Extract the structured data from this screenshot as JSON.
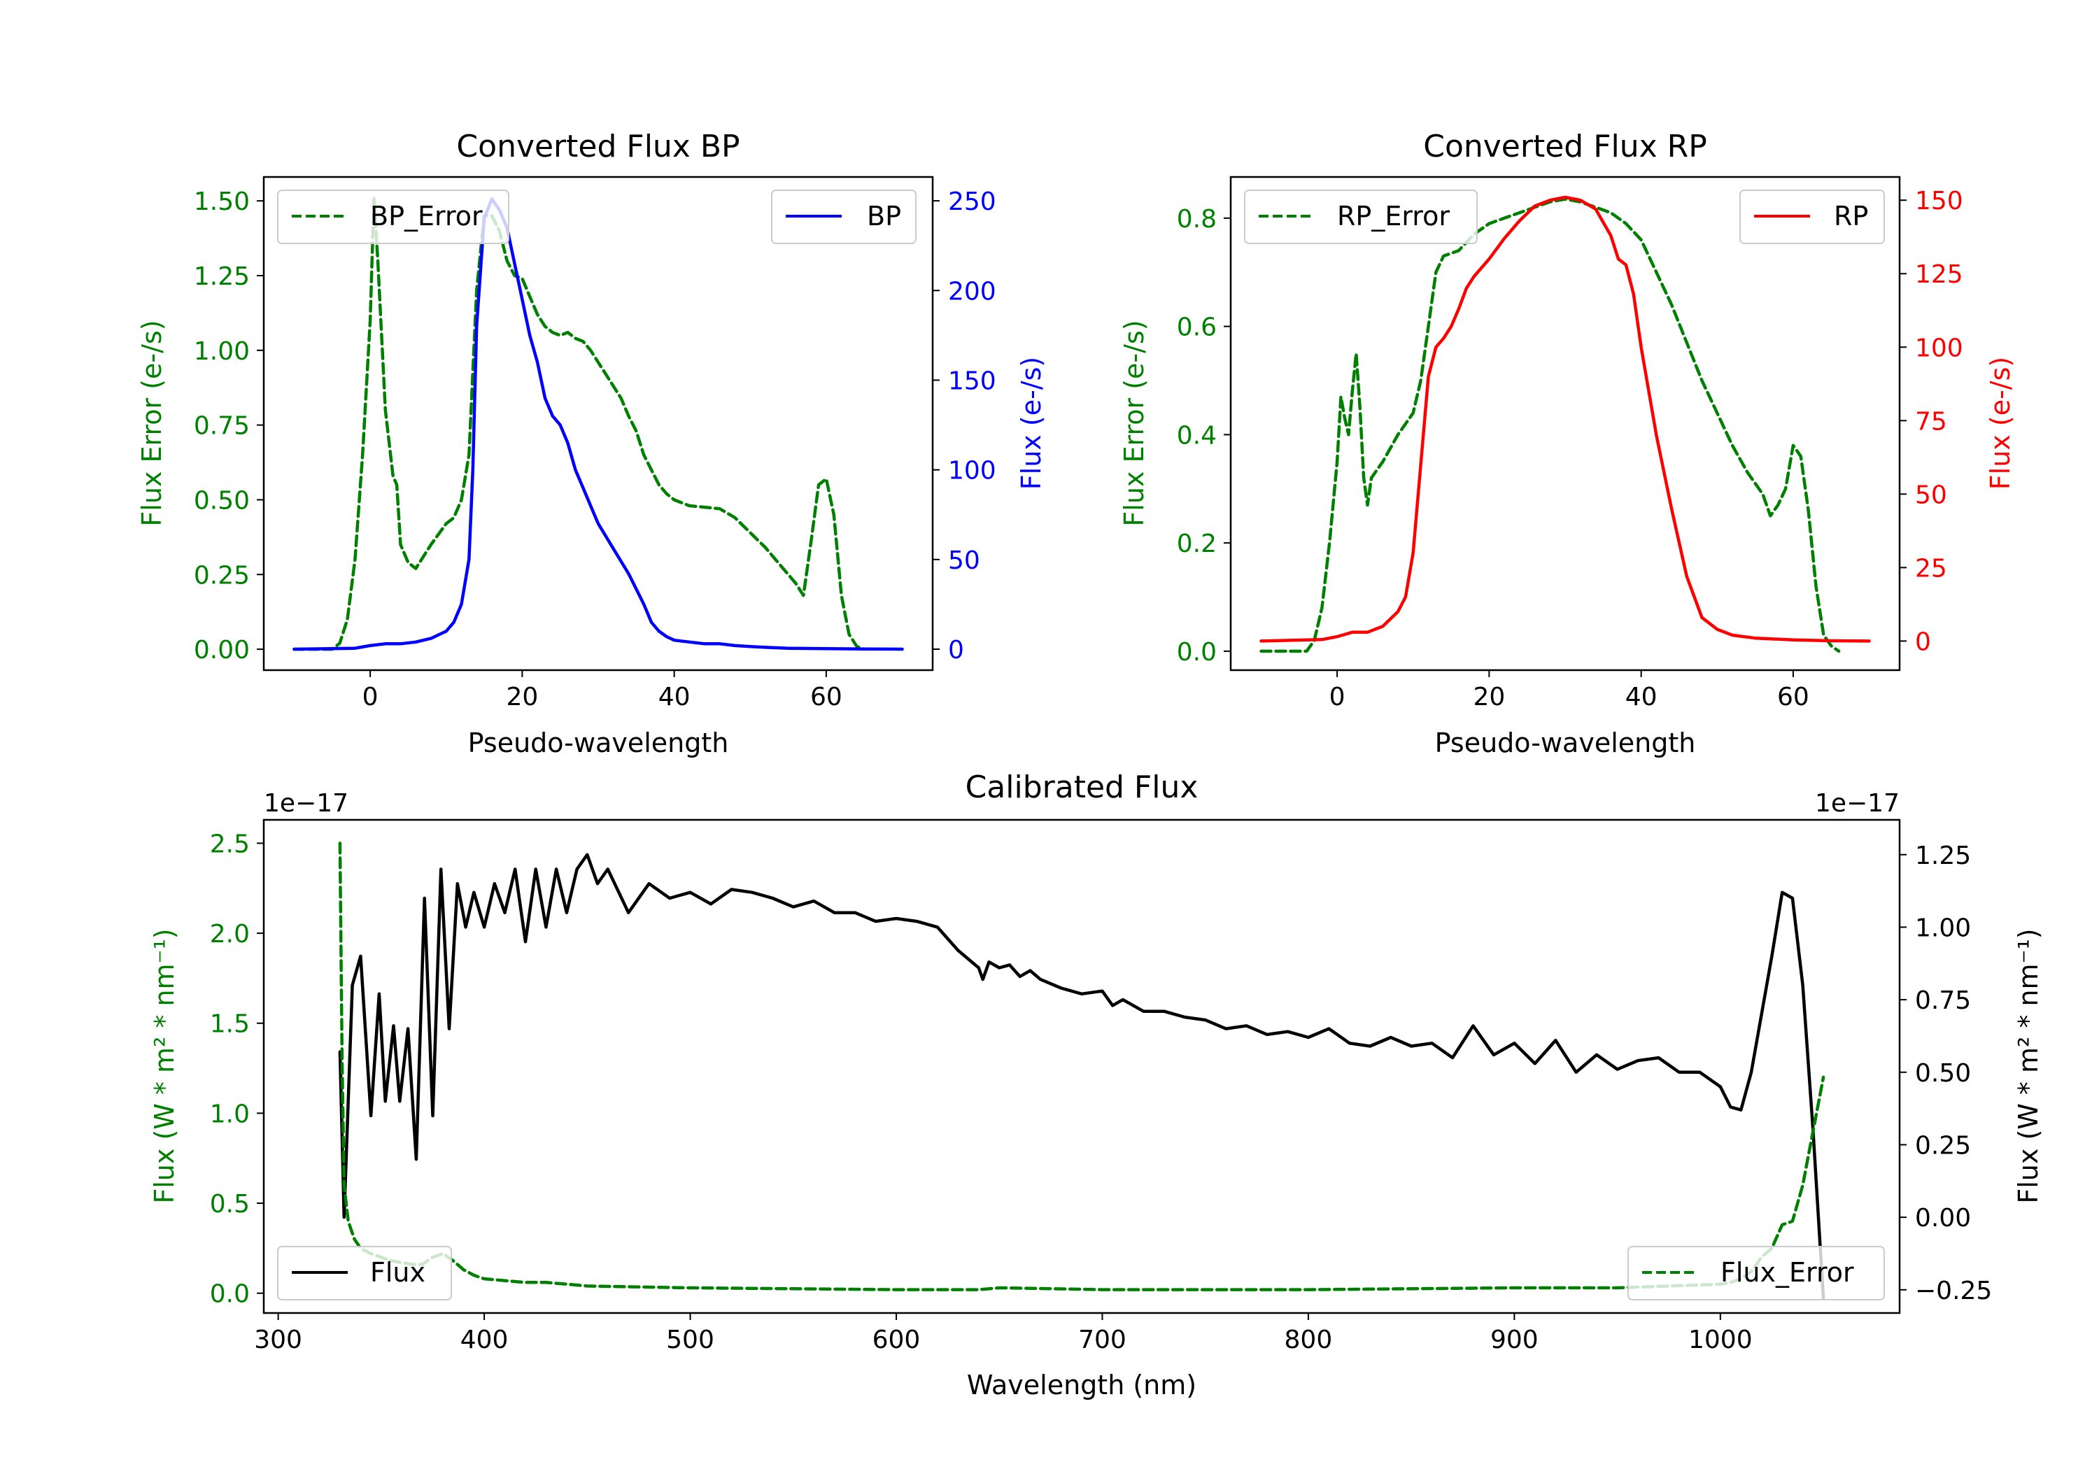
{
  "chart_data": [
    {
      "type": "line",
      "title": "Converted Flux BP",
      "xlabel": "Pseudo-wavelength",
      "ylabel_left": "Flux Error (e-/s)",
      "ylabel_right": "Flux (e-/s)",
      "xlim": [
        -14,
        74
      ],
      "ylim_left": [
        -0.07,
        1.58
      ],
      "ylim_right": [
        -11.7,
        263.3
      ],
      "xticks": [
        0,
        20,
        40,
        60
      ],
      "yticks_left": [
        0.0,
        0.25,
        0.5,
        0.75,
        1.0,
        1.25,
        1.5
      ],
      "yticks_right": [
        0,
        50,
        100,
        150,
        200,
        250
      ],
      "ytick_labels_left": [
        "0.00",
        "0.25",
        "0.50",
        "0.75",
        "1.00",
        "1.25",
        "1.50"
      ],
      "left_color": "#008000",
      "right_color": "#0000ff",
      "legend_left": {
        "label": "BP_Error",
        "placement": "upper-left"
      },
      "legend_right": {
        "label": "BP",
        "placement": "upper-right"
      },
      "series": [
        {
          "name": "BP_Error",
          "axis": "left",
          "style": "dashed",
          "color": "#008000",
          "x": [
            -10,
            -5,
            -4,
            -3,
            -2,
            -1,
            0,
            0.5,
            1,
            2,
            3,
            3.5,
            4,
            5,
            6,
            8,
            10,
            11,
            12,
            13,
            14,
            15,
            16,
            17,
            18,
            19,
            20,
            21,
            22,
            23,
            24,
            25,
            26,
            27,
            28,
            29,
            30,
            31,
            32,
            33,
            34,
            35,
            36,
            37,
            38,
            39,
            40,
            42,
            44,
            46,
            48,
            50,
            52,
            54,
            56,
            57,
            58,
            59,
            60,
            61,
            62,
            63,
            64,
            65
          ],
          "y": [
            0,
            0.0,
            0.02,
            0.1,
            0.3,
            0.65,
            1.1,
            1.51,
            1.3,
            0.8,
            0.58,
            0.55,
            0.35,
            0.29,
            0.27,
            0.35,
            0.42,
            0.44,
            0.5,
            0.65,
            1.2,
            1.45,
            1.45,
            1.4,
            1.3,
            1.25,
            1.24,
            1.18,
            1.12,
            1.08,
            1.06,
            1.05,
            1.06,
            1.04,
            1.03,
            1.0,
            0.96,
            0.92,
            0.88,
            0.84,
            0.78,
            0.73,
            0.65,
            0.6,
            0.55,
            0.52,
            0.5,
            0.48,
            0.475,
            0.47,
            0.44,
            0.39,
            0.34,
            0.28,
            0.22,
            0.18,
            0.36,
            0.55,
            0.57,
            0.45,
            0.18,
            0.05,
            0.01,
            0
          ]
        },
        {
          "name": "BP",
          "axis": "right",
          "style": "solid",
          "color": "#0000ff",
          "x": [
            -10,
            -2,
            0,
            2,
            4,
            6,
            8,
            10,
            11,
            12,
            13,
            13.5,
            14,
            15,
            16,
            17,
            18,
            19,
            20,
            21,
            22,
            23,
            24,
            25,
            26,
            27,
            28,
            29,
            30,
            32,
            34,
            36,
            37,
            38,
            39,
            40,
            42,
            44,
            46,
            48,
            50,
            52,
            55,
            60,
            65,
            70
          ],
          "y": [
            0,
            0.5,
            2,
            3,
            3,
            4,
            6,
            10,
            15,
            25,
            50,
            100,
            180,
            240,
            251,
            245,
            235,
            215,
            195,
            175,
            160,
            140,
            130,
            125,
            115,
            100,
            90,
            80,
            70,
            56,
            42,
            25,
            15,
            10,
            7,
            5,
            4,
            3,
            3,
            2,
            1.5,
            1,
            0.5,
            0.3,
            0.1,
            0
          ]
        }
      ]
    },
    {
      "type": "line",
      "title": "Converted Flux RP",
      "xlabel": "Pseudo-wavelength",
      "ylabel_left": "Flux Error (e-/s)",
      "ylabel_right": "Flux (e-/s)",
      "xlim": [
        -14,
        74
      ],
      "ylim_left": [
        -0.035,
        0.876
      ],
      "ylim_right": [
        -9.9,
        157.9
      ],
      "xticks": [
        0,
        20,
        40,
        60
      ],
      "yticks_left": [
        0.0,
        0.2,
        0.4,
        0.6,
        0.8
      ],
      "yticks_right": [
        0,
        25,
        50,
        75,
        100,
        125,
        150
      ],
      "ytick_labels_left": [
        "0.0",
        "0.2",
        "0.4",
        "0.6",
        "0.8"
      ],
      "left_color": "#008000",
      "right_color": "#ff0000",
      "legend_left": {
        "label": "RP_Error",
        "placement": "upper-left"
      },
      "legend_right": {
        "label": "RP",
        "placement": "upper-right"
      },
      "series": [
        {
          "name": "RP_Error",
          "axis": "left",
          "style": "dashed",
          "color": "#008000",
          "x": [
            -10,
            -4,
            -3,
            -2,
            -1,
            0,
            0.5,
            1,
            1.5,
            2,
            2.5,
            3,
            3.5,
            4,
            4.5,
            5,
            6,
            8,
            10,
            11,
            12,
            13,
            14,
            16,
            18,
            20,
            22,
            24,
            26,
            28,
            30,
            32,
            34,
            36,
            38,
            40,
            42,
            44,
            46,
            48,
            50,
            52,
            54,
            56,
            57,
            58,
            59,
            60,
            61,
            62,
            63,
            64,
            65,
            66
          ],
          "y": [
            0,
            0.0,
            0.02,
            0.08,
            0.2,
            0.35,
            0.47,
            0.43,
            0.4,
            0.48,
            0.55,
            0.45,
            0.32,
            0.27,
            0.32,
            0.33,
            0.35,
            0.4,
            0.44,
            0.5,
            0.6,
            0.7,
            0.73,
            0.74,
            0.77,
            0.79,
            0.8,
            0.81,
            0.82,
            0.83,
            0.835,
            0.83,
            0.82,
            0.81,
            0.79,
            0.76,
            0.7,
            0.64,
            0.57,
            0.5,
            0.44,
            0.38,
            0.33,
            0.29,
            0.25,
            0.27,
            0.3,
            0.38,
            0.36,
            0.26,
            0.12,
            0.03,
            0.01,
            0
          ]
        },
        {
          "name": "RP",
          "axis": "right",
          "style": "solid",
          "color": "#ff0000",
          "x": [
            -10,
            -2,
            0,
            2,
            4,
            6,
            8,
            9,
            10,
            11,
            12,
            13,
            14,
            15,
            16,
            17,
            18,
            20,
            22,
            24,
            26,
            28,
            30,
            32,
            34,
            36,
            37,
            38,
            39,
            40,
            42,
            44,
            46,
            48,
            50,
            52,
            55,
            60,
            65,
            70
          ],
          "y": [
            0,
            0.5,
            1.5,
            3,
            3,
            5,
            10,
            15,
            30,
            60,
            90,
            100,
            103,
            107,
            113,
            120,
            124,
            130,
            137,
            143,
            148,
            150,
            151,
            150,
            147,
            138,
            130,
            128,
            118,
            100,
            70,
            45,
            22,
            8,
            4,
            2,
            1,
            0.4,
            0.1,
            0
          ]
        }
      ]
    },
    {
      "type": "line",
      "title": "Calibrated Flux",
      "xlabel": "Wavelength (nm)",
      "ylabel_left": "Flux (W * m² * nm⁻¹)",
      "ylabel_right": "Flux (W * m² * nm⁻¹)",
      "offset_left": "1e−17",
      "offset_right": "1e−17",
      "xlim": [
        293,
        1087
      ],
      "ylim_left": [
        -0.11,
        2.63
      ],
      "ylim_right": [
        -0.33,
        1.37
      ],
      "xticks": [
        300,
        400,
        500,
        600,
        700,
        800,
        900,
        1000
      ],
      "yticks_left": [
        0.0,
        0.5,
        1.0,
        1.5,
        2.0,
        2.5
      ],
      "yticks_right": [
        -0.25,
        0.0,
        0.25,
        0.5,
        0.75,
        1.0,
        1.25
      ],
      "ytick_labels_left": [
        "0.0",
        "0.5",
        "1.0",
        "1.5",
        "2.0",
        "2.5"
      ],
      "ytick_labels_right": [
        "−0.25",
        "0.00",
        "0.25",
        "0.50",
        "0.75",
        "1.00",
        "1.25"
      ],
      "left_color": "#008000",
      "right_color": "#000000",
      "legend_left": {
        "label": "Flux",
        "placement": "lower-left"
      },
      "legend_right": {
        "label": "Flux_Error",
        "placement": "lower-right"
      },
      "series": [
        {
          "name": "Flux",
          "axis": "right",
          "style": "solid",
          "color": "#000000",
          "x": [
            330,
            332,
            336,
            340,
            345,
            349,
            352,
            356,
            359,
            363,
            367,
            371,
            375,
            379,
            383,
            387,
            391,
            395,
            400,
            405,
            410,
            415,
            420,
            425,
            430,
            435,
            440,
            445,
            450,
            455,
            460,
            470,
            480,
            490,
            500,
            510,
            520,
            530,
            540,
            550,
            560,
            570,
            580,
            590,
            600,
            610,
            620,
            630,
            640,
            642,
            645,
            650,
            655,
            660,
            665,
            670,
            680,
            690,
            700,
            705,
            710,
            720,
            730,
            740,
            750,
            760,
            770,
            780,
            790,
            800,
            810,
            820,
            830,
            840,
            850,
            860,
            870,
            880,
            890,
            900,
            910,
            920,
            930,
            940,
            950,
            960,
            970,
            980,
            990,
            1000,
            1005,
            1010,
            1015,
            1020,
            1025,
            1030,
            1035,
            1040,
            1045,
            1050
          ],
          "y": [
            0.57,
            0.0,
            0.8,
            0.9,
            0.35,
            0.77,
            0.4,
            0.66,
            0.4,
            0.65,
            0.2,
            1.1,
            0.35,
            1.2,
            0.65,
            1.15,
            1.0,
            1.12,
            1.0,
            1.15,
            1.05,
            1.2,
            0.95,
            1.2,
            1.0,
            1.2,
            1.05,
            1.2,
            1.25,
            1.15,
            1.2,
            1.05,
            1.15,
            1.1,
            1.12,
            1.08,
            1.13,
            1.12,
            1.1,
            1.07,
            1.09,
            1.05,
            1.05,
            1.02,
            1.03,
            1.02,
            1.0,
            0.92,
            0.86,
            0.82,
            0.88,
            0.86,
            0.87,
            0.83,
            0.85,
            0.82,
            0.79,
            0.77,
            0.78,
            0.73,
            0.75,
            0.71,
            0.71,
            0.69,
            0.68,
            0.65,
            0.66,
            0.63,
            0.64,
            0.62,
            0.65,
            0.6,
            0.59,
            0.62,
            0.59,
            0.6,
            0.55,
            0.66,
            0.56,
            0.6,
            0.53,
            0.61,
            0.5,
            0.56,
            0.51,
            0.54,
            0.55,
            0.5,
            0.5,
            0.45,
            0.38,
            0.37,
            0.5,
            0.7,
            0.9,
            1.12,
            1.1,
            0.8,
            0.3,
            -0.28
          ]
        },
        {
          "name": "Flux_Error",
          "axis": "left",
          "style": "dashed",
          "color": "#008000",
          "x": [
            330,
            331,
            332,
            334,
            337,
            340,
            345,
            350,
            355,
            360,
            365,
            370,
            375,
            380,
            385,
            390,
            395,
            400,
            410,
            420,
            430,
            440,
            450,
            500,
            600,
            640,
            650,
            700,
            800,
            900,
            950,
            1000,
            1005,
            1010,
            1015,
            1020,
            1025,
            1030,
            1035,
            1040,
            1045,
            1050
          ],
          "y": [
            2.5,
            1.3,
            0.6,
            0.4,
            0.3,
            0.25,
            0.22,
            0.2,
            0.18,
            0.17,
            0.16,
            0.16,
            0.2,
            0.22,
            0.18,
            0.13,
            0.1,
            0.08,
            0.07,
            0.06,
            0.06,
            0.05,
            0.04,
            0.03,
            0.02,
            0.02,
            0.03,
            0.02,
            0.02,
            0.03,
            0.03,
            0.05,
            0.06,
            0.08,
            0.12,
            0.2,
            0.25,
            0.38,
            0.4,
            0.6,
            0.9,
            1.2
          ]
        }
      ]
    }
  ]
}
